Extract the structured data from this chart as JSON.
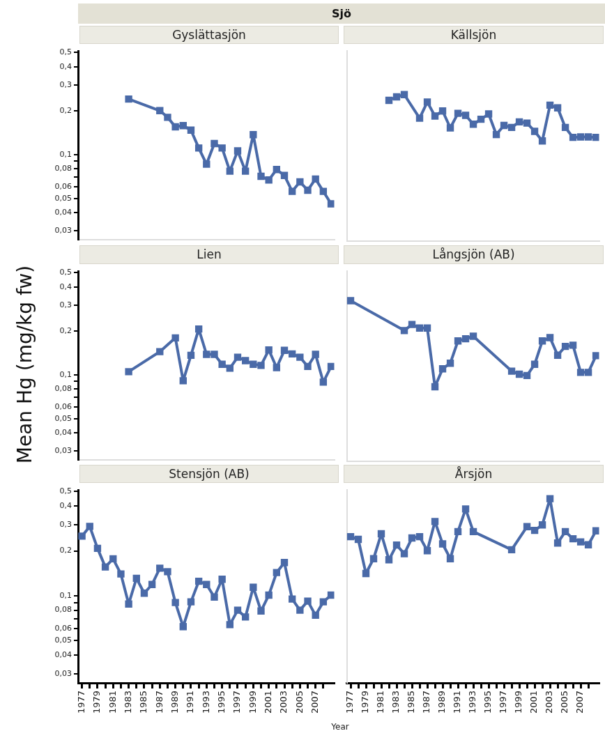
{
  "chart_data": [
    {
      "type": "line",
      "title": "Gyslättasjön",
      "annotations": [
        "Sjö"
      ],
      "log": "y",
      "marker": "square",
      "legend": false,
      "tick_labels": "y",
      "xlim": [
        1976.5,
        2009.4
      ],
      "ylim": [
        0.026,
        0.51
      ],
      "yticks": [
        {
          "value": 0.03,
          "label": "0,03"
        },
        {
          "value": 0.04,
          "label": "0,04"
        },
        {
          "value": 0.05,
          "label": "0,05"
        },
        {
          "value": 0.06,
          "label": "0,06"
        },
        {
          "value": 0.07,
          "label": null
        },
        {
          "value": 0.08,
          "label": "0,08"
        },
        {
          "value": 0.09,
          "label": null
        },
        {
          "value": 0.1,
          "label": "0,1"
        },
        {
          "value": 0.2,
          "label": "0,2"
        },
        {
          "value": 0.3,
          "label": "0,3"
        },
        {
          "value": 0.4,
          "label": "0,4"
        },
        {
          "value": 0.5,
          "label": "0,5"
        }
      ],
      "series": [
        {
          "color": "#4a6aa8",
          "x": [
            1983,
            1987,
            1988,
            1989,
            1990,
            1991,
            1992,
            1993,
            1994,
            1995,
            1996,
            1997,
            1998,
            1999,
            2000,
            2001,
            2002,
            2003,
            2004,
            2005,
            2006,
            2007,
            2008,
            2009
          ],
          "values": [
            0.24,
            0.2,
            0.18,
            0.155,
            0.158,
            0.147,
            0.111,
            0.086,
            0.119,
            0.111,
            0.077,
            0.106,
            0.077,
            0.137,
            0.071,
            0.067,
            0.079,
            0.072,
            0.056,
            0.065,
            0.057,
            0.068,
            0.056,
            0.046
          ]
        }
      ]
    },
    {
      "type": "line",
      "title": "Källsjön",
      "log": "y",
      "marker": "square",
      "legend": false,
      "tick_labels": false,
      "xlim": [
        1976.5,
        2009.4
      ],
      "ylim": [
        0.026,
        0.51
      ],
      "series": [
        {
          "color": "#4a6aa8",
          "x": [
            1982,
            1983,
            1984,
            1986,
            1987,
            1988,
            1989,
            1990,
            1991,
            1992,
            1993,
            1994,
            1995,
            1996,
            1997,
            1998,
            1999,
            2000,
            2001,
            2002,
            2003,
            2004,
            2005,
            2006,
            2007,
            2008,
            2009
          ],
          "values": [
            0.234,
            0.247,
            0.256,
            0.177,
            0.228,
            0.183,
            0.198,
            0.152,
            0.191,
            0.185,
            0.161,
            0.174,
            0.189,
            0.137,
            0.158,
            0.153,
            0.167,
            0.164,
            0.144,
            0.124,
            0.217,
            0.208,
            0.153,
            0.131,
            0.132,
            0.132,
            0.131
          ]
        }
      ]
    },
    {
      "type": "line",
      "title": "Lien",
      "ylabel": "Mean Hg (mg/kg fw)",
      "log": "y",
      "marker": "square",
      "legend": false,
      "tick_labels": "y",
      "xlim": [
        1976.5,
        2009.4
      ],
      "ylim": [
        0.026,
        0.51
      ],
      "yticks": [
        {
          "value": 0.03,
          "label": "0,03"
        },
        {
          "value": 0.04,
          "label": "0,04"
        },
        {
          "value": 0.05,
          "label": "0,05"
        },
        {
          "value": 0.06,
          "label": "0,06"
        },
        {
          "value": 0.07,
          "label": null
        },
        {
          "value": 0.08,
          "label": "0,08"
        },
        {
          "value": 0.09,
          "label": null
        },
        {
          "value": 0.1,
          "label": "0,1"
        },
        {
          "value": 0.2,
          "label": "0,2"
        },
        {
          "value": 0.3,
          "label": "0,3"
        },
        {
          "value": 0.4,
          "label": "0,4"
        },
        {
          "value": 0.5,
          "label": "0,5"
        }
      ],
      "series": [
        {
          "color": "#4a6aa8",
          "x": [
            1983,
            1987,
            1989,
            1990,
            1991,
            1992,
            1993,
            1994,
            1995,
            1996,
            1997,
            1998,
            1999,
            2000,
            2001,
            2002,
            2003,
            2004,
            2005,
            2006,
            2007,
            2008,
            2009
          ],
          "values": [
            0.105,
            0.144,
            0.179,
            0.091,
            0.136,
            0.206,
            0.138,
            0.138,
            0.118,
            0.111,
            0.132,
            0.125,
            0.118,
            0.116,
            0.148,
            0.112,
            0.147,
            0.139,
            0.132,
            0.114,
            0.138,
            0.089,
            0.114
          ]
        }
      ]
    },
    {
      "type": "line",
      "title": "Långsjön (AB)",
      "log": "y",
      "marker": "square",
      "legend": false,
      "tick_labels": false,
      "xlim": [
        1976.5,
        2009.4
      ],
      "ylim": [
        0.026,
        0.51
      ],
      "series": [
        {
          "color": "#4a6aa8",
          "x": [
            1977,
            1984,
            1985,
            1986,
            1987,
            1988,
            1989,
            1990,
            1991,
            1992,
            1993,
            1998,
            1999,
            2000,
            2001,
            2002,
            2003,
            2004,
            2005,
            2006,
            2007,
            2008,
            2009
          ],
          "values": [
            0.319,
            0.2,
            0.22,
            0.208,
            0.208,
            0.083,
            0.11,
            0.12,
            0.17,
            0.176,
            0.183,
            0.106,
            0.101,
            0.099,
            0.118,
            0.17,
            0.179,
            0.136,
            0.156,
            0.159,
            0.104,
            0.104,
            0.135
          ]
        }
      ]
    },
    {
      "type": "line",
      "title": "Stensjön (AB)",
      "xlabel": "Year",
      "log": "y",
      "marker": "square",
      "legend": false,
      "xlim": [
        1976.5,
        2009.4
      ],
      "ylim": [
        0.026,
        0.51
      ],
      "xticks": [
        {
          "value": 1977,
          "label": "1977"
        },
        {
          "value": 1978,
          "label": null
        },
        {
          "value": 1979,
          "label": "1979"
        },
        {
          "value": 1980,
          "label": null
        },
        {
          "value": 1981,
          "label": "1981"
        },
        {
          "value": 1982,
          "label": null
        },
        {
          "value": 1983,
          "label": "1983"
        },
        {
          "value": 1984,
          "label": null
        },
        {
          "value": 1985,
          "label": "1985"
        },
        {
          "value": 1986,
          "label": null
        },
        {
          "value": 1987,
          "label": "1987"
        },
        {
          "value": 1988,
          "label": null
        },
        {
          "value": 1989,
          "label": "1989"
        },
        {
          "value": 1990,
          "label": null
        },
        {
          "value": 1991,
          "label": "1991"
        },
        {
          "value": 1992,
          "label": null
        },
        {
          "value": 1993,
          "label": "1993"
        },
        {
          "value": 1994,
          "label": null
        },
        {
          "value": 1995,
          "label": "1995"
        },
        {
          "value": 1996,
          "label": null
        },
        {
          "value": 1997,
          "label": "1997"
        },
        {
          "value": 1998,
          "label": null
        },
        {
          "value": 1999,
          "label": "1999"
        },
        {
          "value": 2000,
          "label": null
        },
        {
          "value": 2001,
          "label": "2001"
        },
        {
          "value": 2002,
          "label": null
        },
        {
          "value": 2003,
          "label": "2003"
        },
        {
          "value": 2004,
          "label": null
        },
        {
          "value": 2005,
          "label": "2005"
        },
        {
          "value": 2006,
          "label": null
        },
        {
          "value": 2007,
          "label": "2007"
        },
        {
          "value": 2008,
          "label": null
        }
      ],
      "yticks": [
        {
          "value": 0.03,
          "label": "0,03"
        },
        {
          "value": 0.04,
          "label": "0,04"
        },
        {
          "value": 0.05,
          "label": "0,05"
        },
        {
          "value": 0.06,
          "label": "0,06"
        },
        {
          "value": 0.07,
          "label": null
        },
        {
          "value": 0.08,
          "label": "0,08"
        },
        {
          "value": 0.09,
          "label": null
        },
        {
          "value": 0.1,
          "label": "0,1"
        },
        {
          "value": 0.2,
          "label": "0,2"
        },
        {
          "value": 0.3,
          "label": "0,3"
        },
        {
          "value": 0.4,
          "label": "0,4"
        },
        {
          "value": 0.5,
          "label": "0,5"
        }
      ],
      "series": [
        {
          "color": "#4a6aa8",
          "x": [
            1977,
            1978,
            1979,
            1980,
            1981,
            1982,
            1983,
            1984,
            1985,
            1986,
            1987,
            1988,
            1989,
            1990,
            1991,
            1992,
            1993,
            1994,
            1995,
            1996,
            1997,
            1998,
            1999,
            2000,
            2001,
            2002,
            2003,
            2004,
            2005,
            2006,
            2007,
            2008,
            2009
          ],
          "values": [
            0.251,
            0.292,
            0.208,
            0.156,
            0.177,
            0.14,
            0.088,
            0.131,
            0.104,
            0.119,
            0.153,
            0.145,
            0.09,
            0.062,
            0.091,
            0.125,
            0.119,
            0.098,
            0.129,
            0.064,
            0.08,
            0.072,
            0.114,
            0.079,
            0.101,
            0.143,
            0.167,
            0.095,
            0.08,
            0.092,
            0.074,
            0.091,
            0.101
          ]
        }
      ]
    },
    {
      "type": "line",
      "title": "Årsjön",
      "log": "y",
      "marker": "square",
      "legend": false,
      "tick_labels": "x",
      "xlim": [
        1976.5,
        2009.4
      ],
      "ylim": [
        0.026,
        0.51
      ],
      "xticks": [
        {
          "value": 1977,
          "label": "1977"
        },
        {
          "value": 1978,
          "label": null
        },
        {
          "value": 1979,
          "label": "1979"
        },
        {
          "value": 1980,
          "label": null
        },
        {
          "value": 1981,
          "label": "1981"
        },
        {
          "value": 1982,
          "label": null
        },
        {
          "value": 1983,
          "label": "1983"
        },
        {
          "value": 1984,
          "label": null
        },
        {
          "value": 1985,
          "label": "1985"
        },
        {
          "value": 1986,
          "label": null
        },
        {
          "value": 1987,
          "label": "1987"
        },
        {
          "value": 1988,
          "label": null
        },
        {
          "value": 1989,
          "label": "1989"
        },
        {
          "value": 1990,
          "label": null
        },
        {
          "value": 1991,
          "label": "1991"
        },
        {
          "value": 1992,
          "label": null
        },
        {
          "value": 1993,
          "label": "1993"
        },
        {
          "value": 1994,
          "label": null
        },
        {
          "value": 1995,
          "label": "1995"
        },
        {
          "value": 1996,
          "label": null
        },
        {
          "value": 1997,
          "label": "1997"
        },
        {
          "value": 1998,
          "label": null
        },
        {
          "value": 1999,
          "label": "1999"
        },
        {
          "value": 2000,
          "label": null
        },
        {
          "value": 2001,
          "label": "2001"
        },
        {
          "value": 2002,
          "label": null
        },
        {
          "value": 2003,
          "label": "2003"
        },
        {
          "value": 2004,
          "label": null
        },
        {
          "value": 2005,
          "label": "2005"
        },
        {
          "value": 2006,
          "label": null
        },
        {
          "value": 2007,
          "label": "2007"
        },
        {
          "value": 2008,
          "label": null
        }
      ],
      "series": [
        {
          "color": "#4a6aa8",
          "x": [
            1977,
            1978,
            1979,
            1980,
            1981,
            1982,
            1983,
            1984,
            1985,
            1986,
            1987,
            1988,
            1989,
            1990,
            1991,
            1992,
            1993,
            1998,
            2000,
            2001,
            2002,
            2003,
            2004,
            2005,
            2006,
            2007,
            2008,
            2009
          ],
          "values": [
            0.247,
            0.237,
            0.14,
            0.176,
            0.258,
            0.173,
            0.217,
            0.19,
            0.242,
            0.247,
            0.199,
            0.312,
            0.221,
            0.176,
            0.267,
            0.378,
            0.267,
            0.202,
            0.288,
            0.272,
            0.296,
            0.443,
            0.224,
            0.267,
            0.239,
            0.228,
            0.218,
            0.27
          ]
        }
      ]
    }
  ]
}
